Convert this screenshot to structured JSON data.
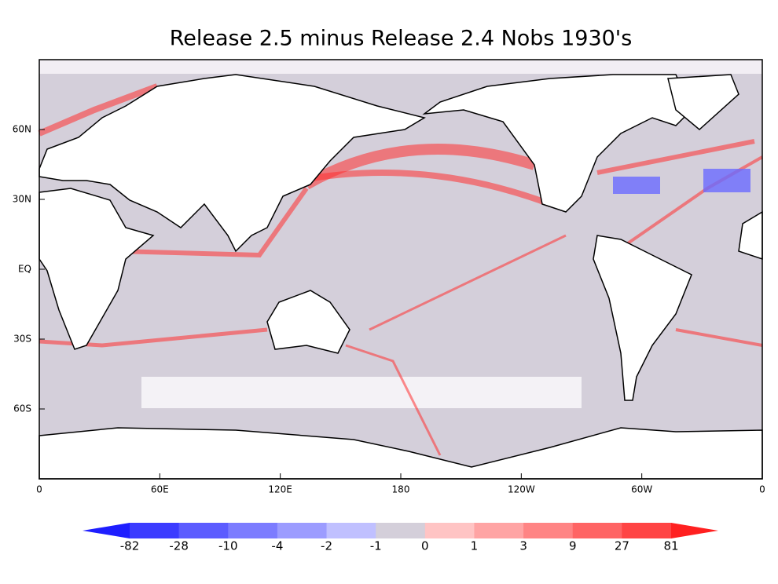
{
  "chart_data": {
    "type": "map",
    "title": "Release 2.5 minus Release 2.4  Nobs 1930's",
    "xlim": [
      0,
      360
    ],
    "ylim": [
      -90,
      90
    ],
    "xticks": [
      0,
      {
        "value": 60,
        "label": "60E"
      },
      {
        "value": 120,
        "label": "120E"
      },
      180,
      {
        "value": 240,
        "label": "120W"
      },
      {
        "value": 300,
        "label": "60W"
      },
      {
        "value": 360,
        "label": "0"
      }
    ],
    "yticks": [
      {
        "value": 60,
        "label": "60N"
      },
      {
        "value": 30,
        "label": "30N"
      },
      {
        "value": 0,
        "label": "EQ"
      },
      {
        "value": -30,
        "label": "30S"
      },
      {
        "value": -60,
        "label": "60S"
      }
    ],
    "colorbar": {
      "levels": [
        -82,
        -28,
        -10,
        -4,
        -2,
        -1,
        0,
        1,
        3,
        9,
        27,
        81
      ],
      "colors": [
        "#1e1eff",
        "#3c3cff",
        "#5c5cff",
        "#7c7cff",
        "#9c9cff",
        "#c0c0ff",
        "#d4cfda",
        "#ffc4c4",
        "#ffa4a4",
        "#ff8484",
        "#ff6464",
        "#ff4444",
        "#ff2020"
      ]
    }
  }
}
